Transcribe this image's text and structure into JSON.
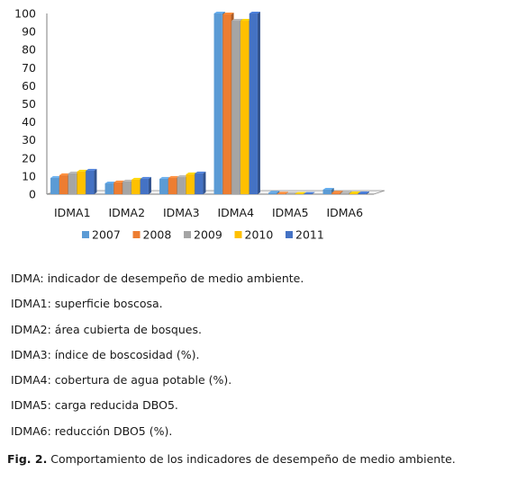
{
  "chart_data": {
    "type": "bar",
    "title": "",
    "xlabel": "",
    "ylabel": "",
    "ylim": [
      0,
      100
    ],
    "yticks": [
      0,
      10,
      20,
      30,
      40,
      50,
      60,
      70,
      80,
      90,
      100
    ],
    "categories": [
      "IDMA1",
      "IDMA2",
      "IDMA3",
      "IDMA4",
      "IDMA5",
      "IDMA6"
    ],
    "series": [
      {
        "name": "2007",
        "color": "#5B9BD5",
        "values": [
          9,
          6,
          8.5,
          100,
          0.8,
          2.5
        ]
      },
      {
        "name": "2008",
        "color": "#ED7D31",
        "values": [
          10.5,
          6.5,
          9,
          99.5,
          0.3,
          0.8
        ]
      },
      {
        "name": "2009",
        "color": "#A5A5A5",
        "values": [
          11.5,
          7,
          9.5,
          96,
          0.2,
          0.6
        ]
      },
      {
        "name": "2010",
        "color": "#FFC000",
        "values": [
          12.5,
          8,
          11,
          96,
          0.2,
          0.5
        ]
      },
      {
        "name": "2011",
        "color": "#4472C4",
        "values": [
          13,
          8.5,
          11.5,
          100,
          0.2,
          0.5
        ]
      }
    ],
    "legend_position": "bottom",
    "grid": false,
    "style": "3d-clustered-column"
  },
  "notes": [
    "IDMA: indicador de desempeño de medio ambiente.",
    "IDMA1: superficie boscosa.",
    "IDMA2: área cubierta de bosques.",
    "IDMA3: índice de boscosidad (%).",
    "IDMA4: cobertura de agua potable (%).",
    "IDMA5: carga reducida DBO5.",
    "IDMA6: reducción DBO5  (%)."
  ],
  "caption": {
    "label": "Fig. 2.",
    "text": " Comportamiento de los indicadores de desempeño de medio ambiente."
  }
}
